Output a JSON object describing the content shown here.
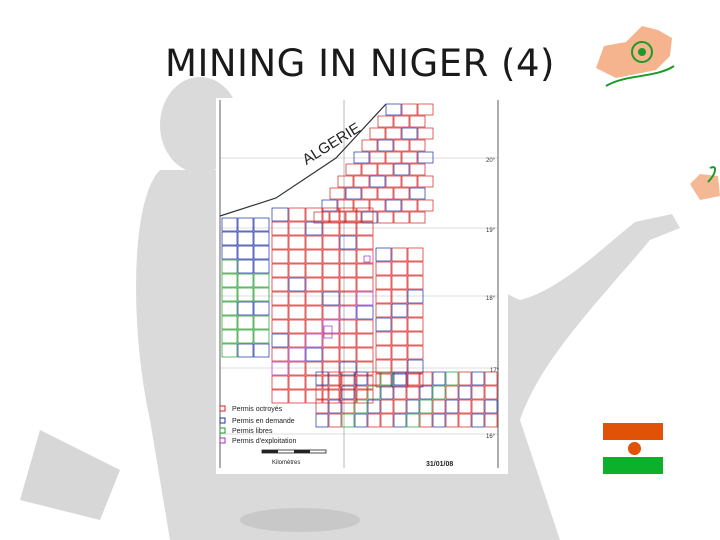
{
  "slide": {
    "title": "MINING IN NIGER (4)"
  },
  "map": {
    "country_label": "ALGERIE",
    "latitudes": [
      "20°",
      "19°",
      "18°",
      "17°",
      "16°"
    ],
    "legend": [
      {
        "label": "Permis octroyés",
        "color": "#d42020"
      },
      {
        "label": "Permis en demande",
        "color": "#1b2fa8"
      },
      {
        "label": "Permis libres",
        "color": "#1d9a2a"
      },
      {
        "label": "Permis d'exploitation",
        "color": "#a12cbf"
      }
    ],
    "scale_label": "Kilomètres",
    "date_stamp": "31/01/08",
    "colors": {
      "granted": "#d42020",
      "requested": "#1b2fa8",
      "free": "#1d9a2a",
      "exploitation": "#a12cbf"
    }
  },
  "flag": {
    "colors": {
      "top": "#e05206",
      "middle": "#ffffff",
      "bottom": "#0db02b",
      "disc": "#e05206"
    }
  }
}
